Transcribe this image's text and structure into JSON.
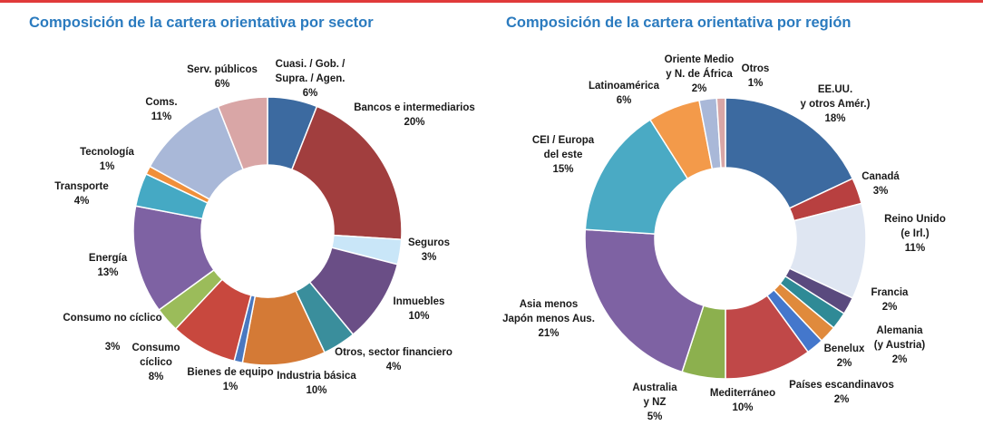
{
  "chart_data": [
    {
      "type": "pie",
      "variant": "donut",
      "title": "Composición de la cartera orientativa por sector",
      "unit": "%",
      "slices": [
        {
          "label": "Cuasi. / Gob. / Supra. / Agen.",
          "value": 6,
          "value_label": "6%",
          "color": "#3c6aa0"
        },
        {
          "label": "Bancos e intermediarios",
          "value": 20,
          "value_label": "20%",
          "color": "#a13e3e"
        },
        {
          "label": "Seguros",
          "value": 3,
          "value_label": "3%",
          "color": "#c9e6f8"
        },
        {
          "label": "Inmuebles",
          "value": 10,
          "value_label": "10%",
          "color": "#6a4e86"
        },
        {
          "label": "Otros, sector financiero",
          "value": 4,
          "value_label": "4%",
          "color": "#3a8e9c"
        },
        {
          "label": "Industria básica",
          "value": 10,
          "value_label": "10%",
          "color": "#d47a36"
        },
        {
          "label": "Bienes de equipo",
          "value": 1,
          "value_label": "1%",
          "color": "#4a78c0"
        },
        {
          "label": "Consumo cíclico",
          "value": 8,
          "value_label": "8%",
          "color": "#c8483e"
        },
        {
          "label": "Consumo no cíclico",
          "value": 3,
          "value_label": "3%",
          "color": "#9bbc5a"
        },
        {
          "label": "Energía",
          "value": 13,
          "value_label": "13%",
          "color": "#7e62a3"
        },
        {
          "label": "Transporte",
          "value": 4,
          "value_label": "4%",
          "color": "#45a9c4"
        },
        {
          "label": "Tecnología",
          "value": 1,
          "value_label": "1%",
          "color": "#f08f3a"
        },
        {
          "label": "Coms.",
          "value": 11,
          "value_label": "11%",
          "color": "#a9b8d8"
        },
        {
          "label": "Serv. públicos",
          "value": 6,
          "value_label": "6%",
          "color": "#d9a6a6"
        }
      ]
    },
    {
      "type": "pie",
      "variant": "donut",
      "title": "Composición de la cartera orientativa por región",
      "unit": "%",
      "slices": [
        {
          "label": "EE.UU. y otros Amér.)",
          "value": 18,
          "value_label": "18%",
          "color": "#3c6aa0"
        },
        {
          "label": "Canadá",
          "value": 3,
          "value_label": "3%",
          "color": "#b84040"
        },
        {
          "label": "Reino Unido (e Irl.)",
          "value": 11,
          "value_label": "11%",
          "color": "#dfe6f2"
        },
        {
          "label": "Francia",
          "value": 2,
          "value_label": "2%",
          "color": "#5a4a7e"
        },
        {
          "label": "Alemania (y Austria)",
          "value": 2,
          "value_label": "2%",
          "color": "#2f8a96"
        },
        {
          "label": "Benelux",
          "value": 2,
          "value_label": "2%",
          "color": "#e08a3c"
        },
        {
          "label": "Países escandinavos",
          "value": 2,
          "value_label": "2%",
          "color": "#4477cc"
        },
        {
          "label": "Mediterráneo",
          "value": 10,
          "value_label": "10%",
          "color": "#c04848"
        },
        {
          "label": "Australia y NZ",
          "value": 5,
          "value_label": "5%",
          "color": "#8cb04e"
        },
        {
          "label": "Asia menos Japón menos Aus.",
          "value": 21,
          "value_label": "21%",
          "color": "#7e62a3"
        },
        {
          "label": "CEI / Europa del este",
          "value": 15,
          "value_label": "15%",
          "color": "#4aaac4"
        },
        {
          "label": "Latinoamérica",
          "value": 6,
          "value_label": "6%",
          "color": "#f39a4a"
        },
        {
          "label": "Oriente Medio y N. de África",
          "value": 2,
          "value_label": "2%",
          "color": "#a9b8d8"
        },
        {
          "label": "Otros",
          "value": 1,
          "value_label": "1%",
          "color": "#d9a6a6"
        }
      ]
    }
  ],
  "labels": {
    "sector": [
      [
        "Cuasi. / Gob. /",
        "Supra. / Agen.",
        "6%"
      ],
      [
        "Bancos e intermediarios",
        "20%"
      ],
      [
        "Seguros",
        "3%"
      ],
      [
        "Inmuebles",
        "10%"
      ],
      [
        "Otros, sector financiero",
        "4%"
      ],
      [
        "Industria básica",
        "10%"
      ],
      [
        "Bienes de equipo",
        "1%"
      ],
      [
        "Consumo",
        "cíclico",
        "8%"
      ],
      [
        "Consumo no cíclico",
        "3%"
      ],
      [
        "Energía",
        "13%"
      ],
      [
        "Transporte",
        "4%"
      ],
      [
        "Tecnología",
        "1%"
      ],
      [
        "Coms.",
        "11%"
      ],
      [
        "Serv. públicos",
        "6%"
      ]
    ],
    "region": [
      [
        "EE.UU.",
        "y otros Amér.)",
        "18%"
      ],
      [
        "Canadá",
        "3%"
      ],
      [
        "Reino Unido",
        "(e Irl.)",
        "11%"
      ],
      [
        "Francia",
        "2%"
      ],
      [
        "Alemania",
        "(y Austria)",
        "2%"
      ],
      [
        "Benelux",
        "2%"
      ],
      [
        "Países escandinavos",
        "2%"
      ],
      [
        "Mediterráneo",
        "10%"
      ],
      [
        "Australia",
        "y NZ",
        "5%"
      ],
      [
        "Asia menos",
        "Japón menos Aus.",
        "21%"
      ],
      [
        "CEI / Europa",
        "del este",
        "15%"
      ],
      [
        "Latinoamérica",
        "6%"
      ],
      [
        "Oriente Medio",
        "y N. de África",
        "2%"
      ],
      [
        "Otros",
        "1%"
      ]
    ]
  }
}
